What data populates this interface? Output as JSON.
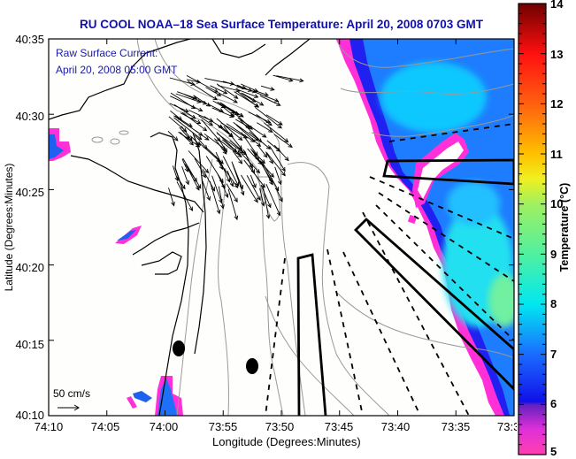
{
  "title": "RU COOL  NOAA–18  Sea Surface Temperature:  April 20, 2008 0703 GMT",
  "annotation": {
    "line1": "Raw Surface Current:",
    "line2": "April 20, 2008 05:00 GMT"
  },
  "scale_vector": {
    "label": "50 cm/s",
    "value_cm_s": 50
  },
  "x_axis": {
    "title": "Longitude (Degrees:Minutes)",
    "ticks": [
      "74:10",
      "74:05",
      "74:00",
      "73:55",
      "73:50",
      "73:45",
      "73:40",
      "73:35",
      "73:3"
    ]
  },
  "y_axis": {
    "title": "Latitude (Degrees:Minutes)",
    "ticks": [
      "40:35",
      "40:30",
      "40:25",
      "40:20",
      "40:15",
      "40:10"
    ]
  },
  "colorbar": {
    "title": "Temperature (°C)",
    "min": 5,
    "max": 14,
    "ticks": [
      "14",
      "13",
      "12",
      "11",
      "10",
      "9",
      "8",
      "7",
      "6",
      "5"
    ],
    "stops": [
      {
        "v": 5,
        "color": "#ff3fb0"
      },
      {
        "v": 5.5,
        "color": "#e030d8"
      },
      {
        "v": 6.0,
        "color": "#6020c0"
      },
      {
        "v": 6.05,
        "color": "#1010e8"
      },
      {
        "v": 7,
        "color": "#1a6cff"
      },
      {
        "v": 8,
        "color": "#00e8f0"
      },
      {
        "v": 9,
        "color": "#50f0a0"
      },
      {
        "v": 10,
        "color": "#a0f060"
      },
      {
        "v": 10.5,
        "color": "#f0f020"
      },
      {
        "v": 11,
        "color": "#ffc000"
      },
      {
        "v": 12,
        "color": "#ff6010"
      },
      {
        "v": 13,
        "color": "#ff1010"
      },
      {
        "v": 14,
        "color": "#700000"
      }
    ]
  },
  "colors": {
    "title": "#1010b0",
    "annotation": "#1a1aa8",
    "land": "#fefefc",
    "contour": "#999999",
    "coast": "#000000"
  }
}
